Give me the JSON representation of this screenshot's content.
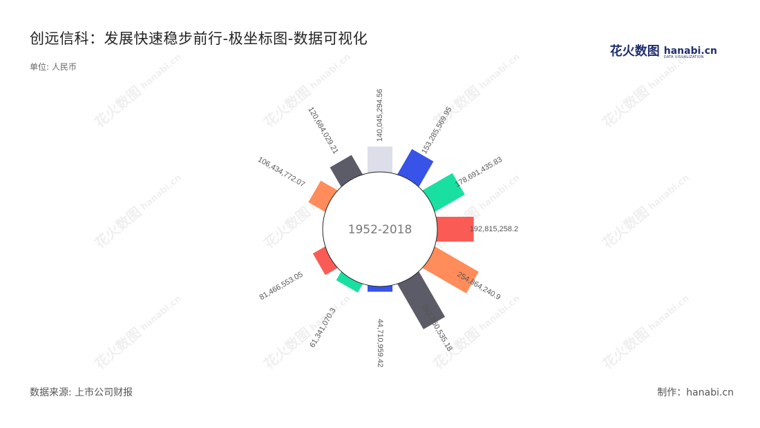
{
  "title": "创远信科：发展快速稳步前行-极坐标图-数据可视化",
  "unit": "单位: 人民币",
  "source": "数据来源: 上市公司财报",
  "maker": "制作：hanabi.cn",
  "logo": {
    "cn": "花火数图",
    "en": "hanabi.cn",
    "en_sub": "DATA VISUALIZATION"
  },
  "watermark": {
    "cn": "花火数图",
    "en": "hanabi.cn"
  },
  "chart_data": {
    "type": "bar",
    "coordinate": "polar",
    "center_label": "1952-2018",
    "categories": [
      "",
      "",
      "",
      "",
      "",
      "",
      "",
      "",
      "",
      "",
      "",
      ""
    ],
    "values": [
      106434772.07,
      120684029.21,
      140045294.56,
      153285569.95,
      178691435.83,
      192815258.2,
      254864240.9,
      262860535.18,
      44710959.42,
      61341070.3,
      81466553.05,
      0
    ],
    "value_labels": [
      "106,434,772.07",
      "120,684,029.21",
      "140,045,294.56",
      "153,285,569.95",
      "178,691,435.83",
      "192,815,258.2",
      "254,864,240.9",
      "262,860,535.18",
      "44,710,959.42",
      "61,341,070.3",
      "81,466,553.05",
      ""
    ],
    "colors": [
      "#ff8c5a",
      "#5b5c67",
      "#dcdfe9",
      "#3753e8",
      "#19e0a0",
      "#fa5c55",
      "#ff8c5a",
      "#5b5c67",
      "#3753e8",
      "#19e0a0",
      "#fa5c55",
      "#ffffff"
    ],
    "grid": false,
    "legend": "none"
  }
}
